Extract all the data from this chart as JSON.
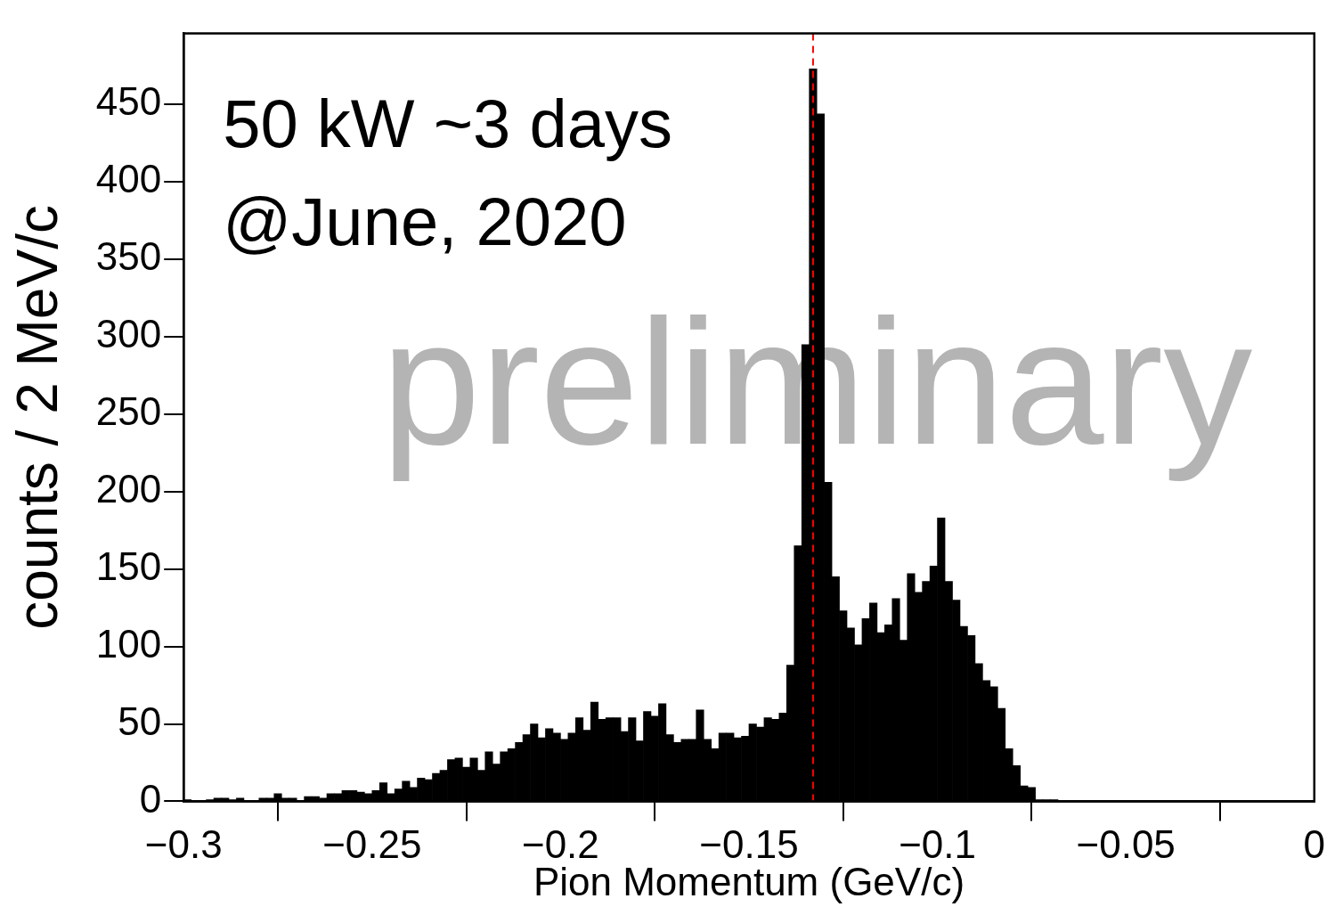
{
  "chart_data": {
    "type": "histogram",
    "xlabel": "Pion Momentum (GeV/c)",
    "ylabel": "counts / 2 MeV/c",
    "annotations": [
      "50 kW ~3 days",
      "@June, 2020",
      "preliminary"
    ],
    "bins": [
      -0.3,
      -0.298,
      -0.296,
      -0.294,
      -0.292,
      -0.29,
      -0.288,
      -0.286,
      -0.284,
      -0.282,
      -0.28,
      -0.278,
      -0.276,
      -0.274,
      -0.272,
      -0.27,
      -0.268,
      -0.266,
      -0.264,
      -0.262,
      -0.26,
      -0.258,
      -0.256,
      -0.254,
      -0.252,
      -0.25,
      -0.248,
      -0.246,
      -0.244,
      -0.242,
      -0.24,
      -0.238,
      -0.236,
      -0.234,
      -0.232,
      -0.23,
      -0.228,
      -0.226,
      -0.224,
      -0.222,
      -0.22,
      -0.218,
      -0.216,
      -0.214,
      -0.212,
      -0.21,
      -0.208,
      -0.206,
      -0.204,
      -0.202,
      -0.2,
      -0.198,
      -0.196,
      -0.194,
      -0.192,
      -0.19,
      -0.188,
      -0.186,
      -0.184,
      -0.182,
      -0.18,
      -0.178,
      -0.176,
      -0.174,
      -0.172,
      -0.17,
      -0.168,
      -0.166,
      -0.164,
      -0.162,
      -0.16,
      -0.158,
      -0.156,
      -0.154,
      -0.152,
      -0.15,
      -0.148,
      -0.146,
      -0.144,
      -0.142,
      -0.14,
      -0.138,
      -0.136,
      -0.134,
      -0.132,
      -0.13,
      -0.128,
      -0.126,
      -0.124,
      -0.122,
      -0.12,
      -0.118,
      -0.116,
      -0.114,
      -0.112,
      -0.11,
      -0.108,
      -0.106,
      -0.104,
      -0.102,
      -0.1,
      -0.098,
      -0.096,
      -0.094,
      -0.092,
      -0.09,
      -0.088,
      -0.086,
      -0.084,
      -0.082,
      -0.08,
      -0.078,
      -0.076,
      -0.074,
      -0.072,
      -0.07,
      -0.068,
      -0.066,
      -0.064,
      -0.062,
      -0.06,
      -0.058,
      -0.056,
      -0.054,
      -0.052,
      -0.05,
      -0.048,
      -0.046,
      -0.044,
      -0.042,
      -0.04,
      -0.038,
      -0.036,
      -0.034,
      -0.032,
      -0.03,
      -0.028,
      -0.026,
      -0.024,
      -0.022,
      -0.02,
      -0.018,
      -0.016,
      -0.014,
      -0.012,
      -0.01,
      -0.008,
      -0.006,
      -0.004,
      -0.002,
      0
    ],
    "values": [
      1,
      0,
      0,
      1,
      2,
      2,
      1,
      2,
      0,
      0,
      2,
      2,
      5,
      2,
      2,
      0,
      3,
      3,
      2,
      5,
      5,
      7,
      7,
      6,
      5,
      7,
      12,
      5,
      8,
      13,
      9,
      15,
      14,
      18,
      20,
      27,
      28,
      22,
      28,
      20,
      32,
      24,
      32,
      34,
      38,
      43,
      50,
      41,
      47,
      44,
      40,
      44,
      54,
      46,
      64,
      53,
      54,
      54,
      45,
      54,
      39,
      58,
      55,
      63,
      43,
      38,
      40,
      40,
      59,
      40,
      34,
      44,
      44,
      41,
      42,
      50,
      48,
      54,
      53,
      57,
      88,
      165,
      295,
      473,
      444,
      206,
      145,
      123,
      112,
      101,
      118,
      128,
      109,
      114,
      131,
      104,
      147,
      135,
      142,
      152,
      183,
      142,
      130,
      113,
      107,
      89,
      78,
      74,
      60,
      34,
      23,
      10,
      9,
      1,
      1,
      1,
      0,
      0,
      0,
      0,
      0,
      0,
      0,
      0,
      0,
      0,
      0,
      0,
      0,
      0,
      0,
      0,
      0,
      0,
      0,
      0,
      0,
      0,
      0,
      0,
      0,
      0,
      0,
      0,
      0,
      0,
      0,
      0,
      0,
      0
    ],
    "color": "#000000",
    "xlim": [
      -0.3,
      0
    ],
    "xticks": [
      {
        "value": -0.3,
        "label": "−0.3"
      },
      {
        "value": -0.25,
        "label": "−0.25"
      },
      {
        "value": -0.2,
        "label": "−0.2"
      },
      {
        "value": -0.15,
        "label": "−0.15"
      },
      {
        "value": -0.1,
        "label": "−0.1"
      },
      {
        "value": -0.05,
        "label": "−0.05"
      },
      0
    ],
    "ylim": [
      0,
      496
    ],
    "yticks": [
      0,
      50,
      100,
      150,
      200,
      250,
      300,
      350,
      400,
      450
    ],
    "ref_lines": [
      {
        "axis": "x",
        "value": -0.133,
        "color": "#ff0000",
        "line_style": "dashed"
      }
    ],
    "grid": false,
    "legend": false
  }
}
